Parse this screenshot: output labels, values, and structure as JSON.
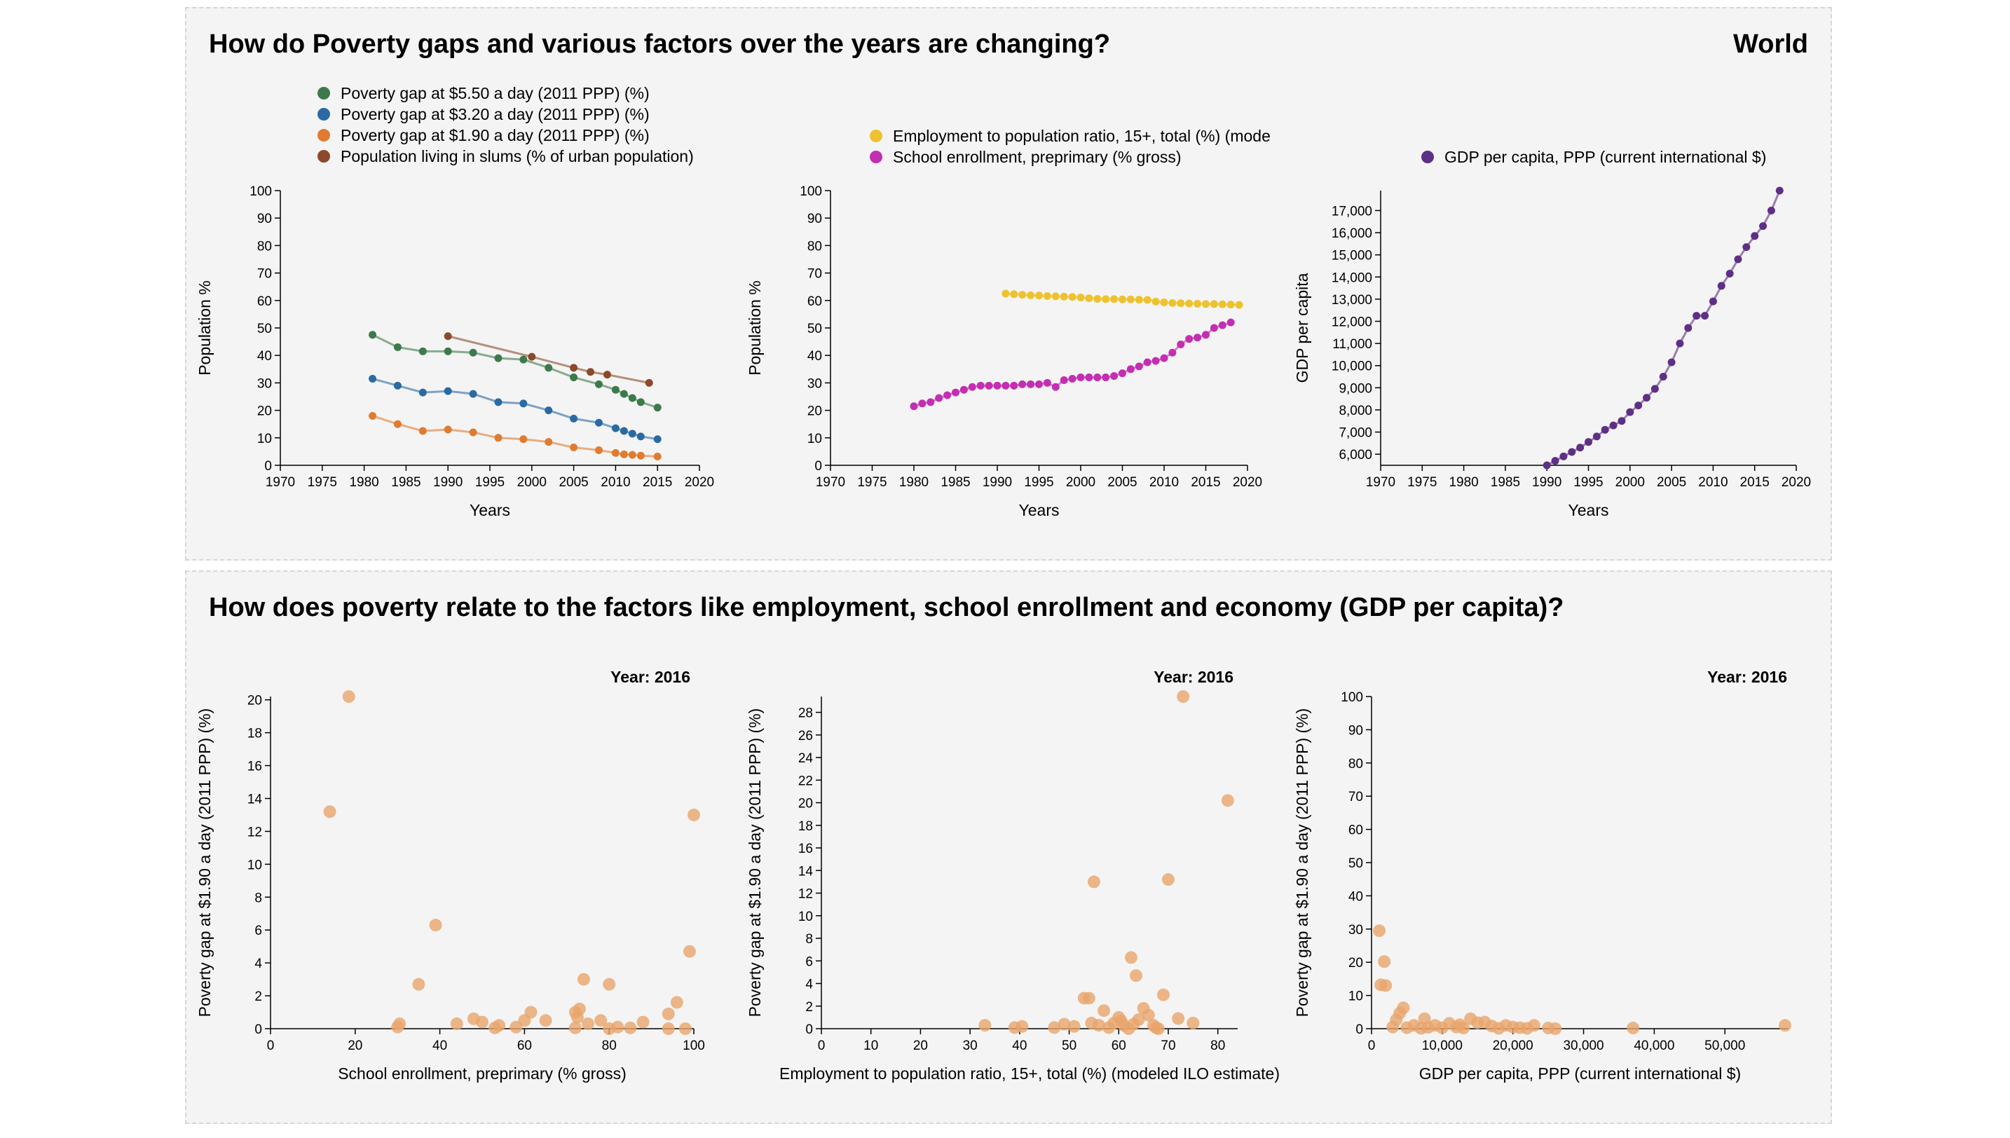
{
  "top_panel": {
    "title": "How do Poverty gaps and various factors over the years are changing?",
    "region": "World"
  },
  "bottom_panel": {
    "title": "How does poverty relate to the factors like employment, school enrollment and economy (GDP per capita)?"
  },
  "colors": {
    "gap550": "#3d7a4b",
    "gap320": "#2a6aa3",
    "gap190": "#e07b30",
    "slums": "#8b4a2b",
    "employment": "#eec22e",
    "school": "#c42eb3",
    "gdp": "#5e2f86",
    "scatter": "#e8a56c"
  },
  "chart_data": [
    {
      "id": "c1",
      "type": "line",
      "xlabel": "Years",
      "ylabel": "Population %",
      "xlim": [
        1970,
        2020
      ],
      "ylim": [
        0,
        100
      ],
      "xticks": [
        1970,
        1975,
        1980,
        1985,
        1990,
        1995,
        2000,
        2005,
        2010,
        2015,
        2020
      ],
      "yticks": [
        0,
        10,
        20,
        30,
        40,
        50,
        60,
        70,
        80,
        90,
        100
      ],
      "series": [
        {
          "name": "Poverty gap at $5.50 a day (2011 PPP) (%)",
          "color": "gap550",
          "x": [
            1981,
            1984,
            1987,
            1990,
            1993,
            1996,
            1999,
            2002,
            2005,
            2008,
            2010,
            2011,
            2012,
            2013,
            2015
          ],
          "y": [
            47.5,
            43.0,
            41.5,
            41.5,
            41.0,
            39.0,
            38.5,
            35.5,
            32.0,
            29.5,
            27.5,
            26.0,
            24.5,
            23.0,
            21.0
          ]
        },
        {
          "name": "Poverty gap at $3.20 a day (2011 PPP) (%)",
          "color": "gap320",
          "x": [
            1981,
            1984,
            1987,
            1990,
            1993,
            1996,
            1999,
            2002,
            2005,
            2008,
            2010,
            2011,
            2012,
            2013,
            2015
          ],
          "y": [
            31.5,
            29.0,
            26.5,
            27.0,
            26.0,
            23.0,
            22.5,
            20.0,
            17.0,
            15.5,
            13.5,
            12.5,
            11.5,
            10.5,
            9.5
          ]
        },
        {
          "name": "Poverty gap at $1.90 a day (2011 PPP) (%)",
          "color": "gap190",
          "x": [
            1981,
            1984,
            1987,
            1990,
            1993,
            1996,
            1999,
            2002,
            2005,
            2008,
            2010,
            2011,
            2012,
            2013,
            2015
          ],
          "y": [
            18.0,
            15.0,
            12.5,
            13.0,
            12.0,
            10.0,
            9.5,
            8.5,
            6.5,
            5.5,
            4.5,
            4.0,
            3.8,
            3.5,
            3.2
          ]
        },
        {
          "name": "Population living in slums (% of urban population)",
          "color": "slums",
          "x": [
            1990,
            2000,
            2005,
            2007,
            2009,
            2014
          ],
          "y": [
            47.0,
            39.5,
            35.5,
            34.0,
            33.0,
            30.0
          ]
        }
      ]
    },
    {
      "id": "c2",
      "type": "line",
      "xlabel": "Years",
      "ylabel": "Population %",
      "xlim": [
        1970,
        2020
      ],
      "ylim": [
        0,
        100
      ],
      "xticks": [
        1970,
        1975,
        1980,
        1985,
        1990,
        1995,
        2000,
        2005,
        2010,
        2015,
        2020
      ],
      "yticks": [
        0,
        10,
        20,
        30,
        40,
        50,
        60,
        70,
        80,
        90,
        100
      ],
      "series": [
        {
          "name": "Employment to population ratio, 15+, total (%) (mode",
          "color": "employment",
          "x": [
            1991,
            1992,
            1993,
            1994,
            1995,
            1996,
            1997,
            1998,
            1999,
            2000,
            2001,
            2002,
            2003,
            2004,
            2005,
            2006,
            2007,
            2008,
            2009,
            2010,
            2011,
            2012,
            2013,
            2014,
            2015,
            2016,
            2017,
            2018,
            2019
          ],
          "y": [
            62.5,
            62.3,
            62.1,
            61.9,
            61.8,
            61.6,
            61.5,
            61.4,
            61.3,
            61.1,
            60.8,
            60.6,
            60.5,
            60.5,
            60.4,
            60.4,
            60.3,
            60.2,
            59.6,
            59.3,
            59.1,
            59.0,
            58.9,
            58.8,
            58.7,
            58.7,
            58.6,
            58.5,
            58.4
          ]
        },
        {
          "name": "School enrollment, preprimary (% gross)",
          "color": "school",
          "x": [
            1980,
            1981,
            1982,
            1983,
            1984,
            1985,
            1986,
            1987,
            1988,
            1989,
            1990,
            1991,
            1992,
            1993,
            1994,
            1995,
            1996,
            1997,
            1998,
            1999,
            2000,
            2001,
            2002,
            2003,
            2004,
            2005,
            2006,
            2007,
            2008,
            2009,
            2010,
            2011,
            2012,
            2013,
            2014,
            2015,
            2016,
            2017,
            2018
          ],
          "y": [
            21.5,
            22.5,
            23.0,
            24.5,
            25.5,
            26.5,
            27.5,
            28.5,
            29.0,
            29.0,
            29.0,
            29.0,
            29.0,
            29.5,
            29.5,
            29.5,
            30.0,
            28.5,
            31.0,
            31.5,
            32.0,
            32.0,
            32.0,
            32.0,
            32.5,
            33.5,
            35.0,
            36.0,
            37.5,
            38.0,
            39.0,
            41.0,
            44.0,
            46.0,
            46.5,
            47.5,
            50.0,
            51.0,
            52.0
          ]
        }
      ]
    },
    {
      "id": "c3",
      "type": "line",
      "xlabel": "Years",
      "ylabel": "GDP per capita",
      "xlim": [
        1970,
        2020
      ],
      "ylim": [
        5500,
        17900
      ],
      "xticks": [
        1970,
        1975,
        1980,
        1985,
        1990,
        1995,
        2000,
        2005,
        2010,
        2015,
        2020
      ],
      "yticks": [
        6000,
        7000,
        8000,
        9000,
        10000,
        11000,
        12000,
        13000,
        14000,
        15000,
        16000,
        17000
      ],
      "ytick_labels": [
        "6,000",
        "7,000",
        "8,000",
        "9,000",
        "10,000",
        "11,000",
        "12,000",
        "13,000",
        "14,000",
        "15,000",
        "16,000",
        "17,000"
      ],
      "series": [
        {
          "name": "GDP per capita, PPP (current international $)",
          "color": "gdp",
          "x": [
            1990,
            1991,
            1992,
            1993,
            1994,
            1995,
            1996,
            1997,
            1998,
            1999,
            2000,
            2001,
            2002,
            2003,
            2004,
            2005,
            2006,
            2007,
            2008,
            2009,
            2010,
            2011,
            2012,
            2013,
            2014,
            2015,
            2016,
            2017,
            2018
          ],
          "y": [
            5500,
            5700,
            5900,
            6100,
            6300,
            6550,
            6800,
            7100,
            7300,
            7500,
            7900,
            8200,
            8550,
            8950,
            9500,
            10150,
            11000,
            11700,
            12250,
            12250,
            12900,
            13600,
            14150,
            14800,
            15350,
            15850,
            16300,
            17000,
            17900
          ]
        }
      ]
    },
    {
      "id": "c4",
      "type": "scatter",
      "annotation": "Year: 2016",
      "xlabel": "School enrollment, preprimary (% gross)",
      "ylabel": "Poverty gap at $1.90 a day (2011 PPP) (%)",
      "xlim": [
        0,
        100
      ],
      "ylim": [
        0,
        20.2
      ],
      "xticks": [
        0,
        20,
        40,
        60,
        80,
        100
      ],
      "yticks": [
        0,
        2,
        4,
        6,
        8,
        10,
        12,
        14,
        16,
        18,
        20
      ],
      "color": "scatter",
      "points": [
        [
          14,
          13.2
        ],
        [
          18.5,
          20.2
        ],
        [
          30,
          0.1
        ],
        [
          30.5,
          0.3
        ],
        [
          35,
          2.7
        ],
        [
          39,
          6.3
        ],
        [
          44,
          0.3
        ],
        [
          48,
          0.6
        ],
        [
          50,
          0.4
        ],
        [
          53,
          0.05
        ],
        [
          54,
          0.2
        ],
        [
          58,
          0.1
        ],
        [
          60,
          0.5
        ],
        [
          61.5,
          1.0
        ],
        [
          65,
          0.5
        ],
        [
          72,
          0.05
        ],
        [
          72,
          1.0
        ],
        [
          72.5,
          0.7
        ],
        [
          73,
          1.2
        ],
        [
          74,
          3.0
        ],
        [
          75,
          0.3
        ],
        [
          78,
          0.5
        ],
        [
          80,
          2.7
        ],
        [
          80,
          0.0
        ],
        [
          82,
          0.1
        ],
        [
          85,
          0.05
        ],
        [
          88,
          0.4
        ],
        [
          94,
          0.9
        ],
        [
          94,
          0.0
        ],
        [
          96,
          1.6
        ],
        [
          98,
          0.0
        ],
        [
          99,
          4.7
        ],
        [
          100,
          13.0
        ]
      ]
    },
    {
      "id": "c5",
      "type": "scatter",
      "annotation": "Year: 2016",
      "xlabel": "Employment to population ratio, 15+, total (%) (modeled ILO estimate)",
      "ylabel": "Poverty gap at $1.90 a day (2011 PPP) (%)",
      "xlim": [
        0,
        84
      ],
      "ylim": [
        0,
        29.4
      ],
      "xticks": [
        0,
        10,
        20,
        30,
        40,
        50,
        60,
        70,
        80
      ],
      "yticks": [
        0,
        2,
        4,
        6,
        8,
        10,
        12,
        14,
        16,
        18,
        20,
        22,
        24,
        26,
        28
      ],
      "color": "scatter",
      "points": [
        [
          33,
          0.3
        ],
        [
          39,
          0.1
        ],
        [
          40.5,
          0.2
        ],
        [
          47,
          0.1
        ],
        [
          49,
          0.4
        ],
        [
          51,
          0.2
        ],
        [
          53,
          2.7
        ],
        [
          54,
          2.7
        ],
        [
          54.5,
          0.5
        ],
        [
          55,
          13.0
        ],
        [
          56,
          0.3
        ],
        [
          57,
          1.6
        ],
        [
          58,
          0.1
        ],
        [
          59,
          0.5
        ],
        [
          60,
          1.0
        ],
        [
          60.5,
          0.7
        ],
        [
          61,
          0.3
        ],
        [
          62,
          0.0
        ],
        [
          62.5,
          6.3
        ],
        [
          63,
          0.4
        ],
        [
          63.5,
          4.7
        ],
        [
          64,
          0.8
        ],
        [
          65,
          1.8
        ],
        [
          66,
          1.2
        ],
        [
          67,
          0.3
        ],
        [
          67.5,
          0.1
        ],
        [
          68,
          0.0
        ],
        [
          69,
          3.0
        ],
        [
          70,
          13.2
        ],
        [
          72,
          0.9
        ],
        [
          73,
          29.4
        ],
        [
          75,
          0.5
        ],
        [
          82,
          20.2
        ]
      ]
    },
    {
      "id": "c6",
      "type": "scatter",
      "annotation": "Year: 2016",
      "xlabel": "GDP per capita, PPP (current international $)",
      "ylabel": "Poverty gap at $1.90 a day (2011 PPP) (%)",
      "xlim": [
        0,
        59000
      ],
      "ylim": [
        0,
        100
      ],
      "xticks": [
        0,
        10000,
        20000,
        30000,
        40000,
        50000
      ],
      "xtick_labels": [
        "0",
        "10,000",
        "20,000",
        "30,000",
        "40,000",
        "50,000"
      ],
      "yticks": [
        0,
        10,
        20,
        30,
        40,
        50,
        60,
        70,
        80,
        90,
        100
      ],
      "color": "scatter",
      "points": [
        [
          1100,
          29.5
        ],
        [
          1300,
          13.2
        ],
        [
          1800,
          20.2
        ],
        [
          2000,
          13.0
        ],
        [
          3000,
          0.5
        ],
        [
          3500,
          2.7
        ],
        [
          4000,
          4.7
        ],
        [
          4500,
          6.3
        ],
        [
          5000,
          0.3
        ],
        [
          6000,
          1.0
        ],
        [
          7000,
          0.1
        ],
        [
          7500,
          3.0
        ],
        [
          8000,
          0.4
        ],
        [
          9000,
          1.0
        ],
        [
          10000,
          0.3
        ],
        [
          11000,
          1.6
        ],
        [
          12000,
          0.5
        ],
        [
          12500,
          1.2
        ],
        [
          13000,
          0.2
        ],
        [
          14000,
          3.0
        ],
        [
          15000,
          1.8
        ],
        [
          16000,
          2.0
        ],
        [
          17000,
          0.8
        ],
        [
          18000,
          0.1
        ],
        [
          19000,
          1.0
        ],
        [
          20000,
          0.5
        ],
        [
          21000,
          0.3
        ],
        [
          22000,
          0.1
        ],
        [
          23000,
          1.0
        ],
        [
          25000,
          0.2
        ],
        [
          26000,
          0.0
        ],
        [
          37000,
          0.2
        ],
        [
          58500,
          1.0
        ]
      ]
    }
  ]
}
